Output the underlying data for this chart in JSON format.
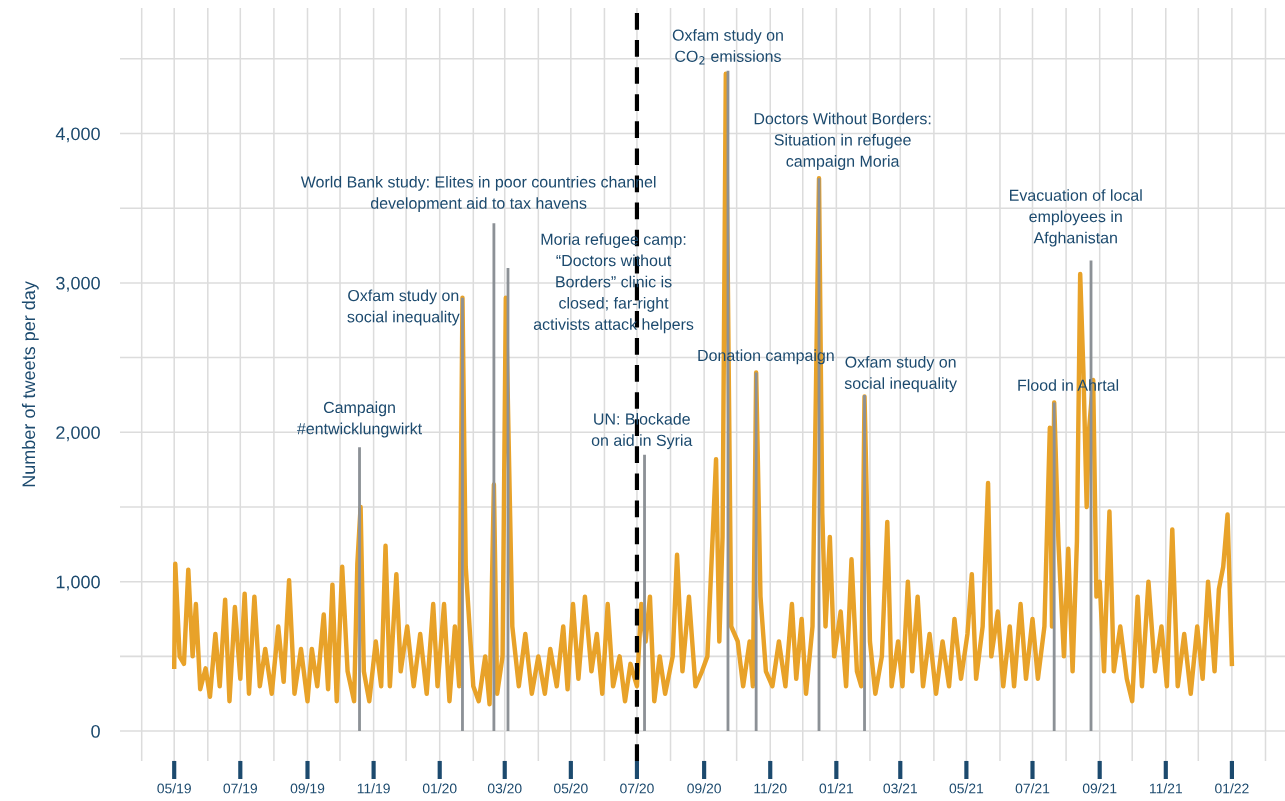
{
  "chart_data": {
    "type": "line",
    "ylabel": "Number of tweets per day",
    "series": [
      {
        "type": "bar",
        "color": "#8c9196",
        "x": [
          "2019-10-19",
          "2020-01-22",
          "2020-02-20",
          "2020-03-04",
          "2020-07-08",
          "2020-09-23",
          "2020-10-19",
          "2020-12-16",
          "2021-01-27",
          "2021-07-21",
          "2021-08-24"
        ],
        "values": [
          1900,
          2900,
          3400,
          3100,
          1850,
          4420,
          2400,
          3700,
          2250,
          2200,
          3150
        ]
      },
      {
        "color": "#e8a229",
        "x": [
          "2019-05-01",
          "2019-05-02",
          "2019-05-06",
          "2019-05-10",
          "2019-05-14",
          "2019-05-18",
          "2019-05-21",
          "2019-05-25",
          "2019-05-30",
          "2019-06-03",
          "2019-06-08",
          "2019-06-12",
          "2019-06-17",
          "2019-06-21",
          "2019-06-26",
          "2019-07-01",
          "2019-07-05",
          "2019-07-09",
          "2019-07-14",
          "2019-07-19",
          "2019-07-24",
          "2019-07-30",
          "2019-08-05",
          "2019-08-10",
          "2019-08-15",
          "2019-08-20",
          "2019-08-26",
          "2019-09-01",
          "2019-09-05",
          "2019-09-10",
          "2019-09-16",
          "2019-09-20",
          "2019-09-24",
          "2019-09-28",
          "2019-10-03",
          "2019-10-08",
          "2019-10-14",
          "2019-10-17",
          "2019-10-20",
          "2019-10-23",
          "2019-10-28",
          "2019-11-03",
          "2019-11-08",
          "2019-11-12",
          "2019-11-16",
          "2019-11-22",
          "2019-11-26",
          "2019-12-02",
          "2019-12-08",
          "2019-12-14",
          "2019-12-20",
          "2019-12-26",
          "2019-12-30",
          "2020-01-05",
          "2020-01-10",
          "2020-01-15",
          "2020-01-19",
          "2020-01-22",
          "2020-01-25",
          "2020-02-01",
          "2020-02-06",
          "2020-02-12",
          "2020-02-16",
          "2020-02-20",
          "2020-02-23",
          "2020-02-28",
          "2020-03-02",
          "2020-03-08",
          "2020-03-14",
          "2020-03-20",
          "2020-03-26",
          "2020-04-01",
          "2020-04-07",
          "2020-04-12",
          "2020-04-18",
          "2020-04-24",
          "2020-04-28",
          "2020-05-03",
          "2020-05-08",
          "2020-05-14",
          "2020-05-20",
          "2020-05-25",
          "2020-05-30",
          "2020-06-04",
          "2020-06-09",
          "2020-06-15",
          "2020-06-20",
          "2020-06-25",
          "2020-07-01",
          "2020-07-05",
          "2020-07-09",
          "2020-07-13",
          "2020-07-17",
          "2020-07-22",
          "2020-07-27",
          "2020-08-03",
          "2020-08-07",
          "2020-08-12",
          "2020-08-18",
          "2020-08-24",
          "2020-08-30",
          "2020-09-04",
          "2020-09-12",
          "2020-09-15",
          "2020-09-18",
          "2020-09-21",
          "2020-09-26",
          "2020-10-02",
          "2020-10-07",
          "2020-10-13",
          "2020-10-16",
          "2020-10-19",
          "2020-10-23",
          "2020-10-28",
          "2020-11-03",
          "2020-11-09",
          "2020-11-15",
          "2020-11-21",
          "2020-11-25",
          "2020-11-30",
          "2020-12-04",
          "2020-12-10",
          "2020-12-16",
          "2020-12-19",
          "2020-12-22",
          "2020-12-26",
          "2020-12-30",
          "2021-01-05",
          "2021-01-10",
          "2021-01-15",
          "2021-01-20",
          "2021-01-24",
          "2021-01-27",
          "2021-02-01",
          "2021-02-06",
          "2021-02-12",
          "2021-02-17",
          "2021-02-21",
          "2021-02-27",
          "2021-03-03",
          "2021-03-08",
          "2021-03-12",
          "2021-03-17",
          "2021-03-22",
          "2021-03-28",
          "2021-04-03",
          "2021-04-09",
          "2021-04-15",
          "2021-04-20",
          "2021-04-26",
          "2021-05-02",
          "2021-05-06",
          "2021-05-10",
          "2021-05-16",
          "2021-05-21",
          "2021-05-24",
          "2021-05-30",
          "2021-06-04",
          "2021-06-10",
          "2021-06-14",
          "2021-06-20",
          "2021-06-25",
          "2021-07-01",
          "2021-07-06",
          "2021-07-12",
          "2021-07-17",
          "2021-07-19",
          "2021-07-21",
          "2021-07-25",
          "2021-07-30",
          "2021-08-03",
          "2021-08-07",
          "2021-08-11",
          "2021-08-14",
          "2021-08-17",
          "2021-08-20",
          "2021-08-22",
          "2021-08-26",
          "2021-08-29",
          "2021-09-01",
          "2021-09-05",
          "2021-09-10",
          "2021-09-14",
          "2021-09-20",
          "2021-09-26",
          "2021-10-01",
          "2021-10-06",
          "2021-10-10",
          "2021-10-16",
          "2021-10-22",
          "2021-10-28",
          "2021-11-02",
          "2021-11-07",
          "2021-11-12",
          "2021-11-18",
          "2021-11-24",
          "2021-11-30",
          "2021-12-05",
          "2021-12-10",
          "2021-12-16",
          "2021-12-20",
          "2021-12-24",
          "2021-12-28",
          "2022-01-01"
        ],
        "values": [
          430,
          1120,
          500,
          450,
          1080,
          500,
          850,
          280,
          420,
          230,
          650,
          300,
          880,
          200,
          830,
          350,
          920,
          250,
          900,
          300,
          550,
          250,
          700,
          330,
          1010,
          250,
          550,
          200,
          550,
          300,
          780,
          280,
          980,
          200,
          1100,
          400,
          200,
          1120,
          1500,
          400,
          200,
          600,
          300,
          1240,
          300,
          1050,
          400,
          700,
          300,
          650,
          250,
          850,
          300,
          850,
          200,
          700,
          300,
          2900,
          1100,
          300,
          200,
          500,
          180,
          1650,
          250,
          500,
          2900,
          700,
          300,
          650,
          250,
          500,
          250,
          550,
          300,
          700,
          280,
          850,
          350,
          900,
          400,
          650,
          250,
          850,
          300,
          500,
          200,
          450,
          300,
          850,
          600,
          900,
          200,
          500,
          250,
          500,
          1180,
          400,
          900,
          300,
          400,
          500,
          1820,
          600,
          1300,
          4400,
          700,
          600,
          300,
          600,
          300,
          2400,
          900,
          400,
          300,
          600,
          300,
          850,
          350,
          750,
          250,
          700,
          3700,
          1460,
          700,
          1300,
          500,
          800,
          300,
          1150,
          400,
          300,
          2240,
          600,
          250,
          500,
          1400,
          300,
          600,
          300,
          1000,
          400,
          900,
          300,
          650,
          250,
          600,
          300,
          750,
          350,
          650,
          1050,
          350,
          700,
          1660,
          500,
          800,
          300,
          700,
          300,
          850,
          350,
          750,
          350,
          700,
          2030,
          700,
          2200,
          1250,
          500,
          1220,
          400,
          1270,
          3060,
          2400,
          1500,
          2000,
          2350,
          900,
          1000,
          400,
          1470,
          400,
          700,
          350,
          200,
          900,
          300,
          1000,
          400,
          700,
          300,
          1350,
          300,
          650,
          250,
          700,
          350,
          1000,
          400,
          950,
          1100,
          1450,
          450
        ]
      }
    ],
    "xlim": [
      "2019-03-12",
      "2022-02-19"
    ],
    "xticks": [
      {
        "value": "2019-04-01",
        "label": null
      },
      {
        "value": "2019-05-01",
        "label": "05/19"
      },
      {
        "value": "2019-06-01",
        "label": null
      },
      {
        "value": "2019-07-01",
        "label": "07/19"
      },
      {
        "value": "2019-08-01",
        "label": null
      },
      {
        "value": "2019-09-01",
        "label": "09/19"
      },
      {
        "value": "2019-10-01",
        "label": null
      },
      {
        "value": "2019-11-01",
        "label": "11/19"
      },
      {
        "value": "2019-12-01",
        "label": null
      },
      {
        "value": "2020-01-01",
        "label": "01/20"
      },
      {
        "value": "2020-02-01",
        "label": null
      },
      {
        "value": "2020-03-01",
        "label": "03/20"
      },
      {
        "value": "2020-04-01",
        "label": null
      },
      {
        "value": "2020-05-01",
        "label": "05/20"
      },
      {
        "value": "2020-06-01",
        "label": null
      },
      {
        "value": "2020-07-01",
        "label": "07/20"
      },
      {
        "value": "2020-08-01",
        "label": null
      },
      {
        "value": "2020-09-01",
        "label": "09/20"
      },
      {
        "value": "2020-10-01",
        "label": null
      },
      {
        "value": "2020-11-01",
        "label": "11/20"
      },
      {
        "value": "2020-12-01",
        "label": null
      },
      {
        "value": "2021-01-01",
        "label": "01/21"
      },
      {
        "value": "2021-02-01",
        "label": null
      },
      {
        "value": "2021-03-01",
        "label": "03/21"
      },
      {
        "value": "2021-04-01",
        "label": null
      },
      {
        "value": "2021-05-01",
        "label": "05/21"
      },
      {
        "value": "2021-06-01",
        "label": null
      },
      {
        "value": "2021-07-01",
        "label": "07/21"
      },
      {
        "value": "2021-08-01",
        "label": null
      },
      {
        "value": "2021-09-01",
        "label": "09/21"
      },
      {
        "value": "2021-10-01",
        "label": null
      },
      {
        "value": "2021-11-01",
        "label": "11/21"
      },
      {
        "value": "2021-12-01",
        "label": null
      },
      {
        "value": "2022-01-01",
        "label": "01/22"
      },
      {
        "value": "2022-02-01",
        "label": null
      }
    ],
    "ylim": [
      -200,
      4840
    ],
    "yticks": [
      {
        "value": 0,
        "label": "0"
      },
      {
        "value": 500,
        "label": null
      },
      {
        "value": 1000,
        "label": "1,000"
      },
      {
        "value": 1500,
        "label": null
      },
      {
        "value": 2000,
        "label": "2,000"
      },
      {
        "value": 2500,
        "label": null
      },
      {
        "value": 3000,
        "label": "3,000"
      },
      {
        "value": 3500,
        "label": null
      },
      {
        "value": 4000,
        "label": "4,000"
      },
      {
        "value": 4500,
        "label": null
      }
    ],
    "grid": true,
    "ref_lines": [
      {
        "axis": "x",
        "value": "2020-07-01",
        "color": "#000000",
        "line_style": "dashed"
      }
    ],
    "annotations": [
      {
        "text": "Campaign\n#entwicklungwirkt",
        "x": "2019-10-19",
        "y": 1900
      },
      {
        "text": "Oxfam study on\nsocial inequality",
        "x": "2020-01-22",
        "y": 2900
      },
      {
        "text": "World Bank study: Elites in poor countries channel\ndevelopment aid to tax havens",
        "x": "2020-02-20",
        "y": 3400
      },
      {
        "text": "Moria refugee camp:\n“Doctors without\nBorders” clinic is\nclosed; far-right\nactivists attack helpers",
        "x": "2020-03-04",
        "y": 3100
      },
      {
        "text": "UN: Blockade\non aid in Syria",
        "x": "2020-07-08",
        "y": 1850
      },
      {
        "text": "Oxfam study on\nCO$_{2}$ emissions",
        "x": "2020-09-23",
        "y": 4420
      },
      {
        "text": "Donation campaign",
        "x": "2020-10-19",
        "y": 2400
      },
      {
        "text": "Doctors Without Borders:\nSituation in refugee\ncampaign Moria",
        "x": "2020-12-16",
        "y": 3700
      },
      {
        "text": "Oxfam study on\nsocial inequality",
        "x": "2021-01-27",
        "y": 2250
      },
      {
        "text": "Flood in Ahrtal",
        "x": "2021-07-21",
        "y": 2200
      },
      {
        "text": "Evacuation of local\nemployees in\nAfghanistan",
        "x": "2021-08-24",
        "y": 3150
      }
    ]
  }
}
